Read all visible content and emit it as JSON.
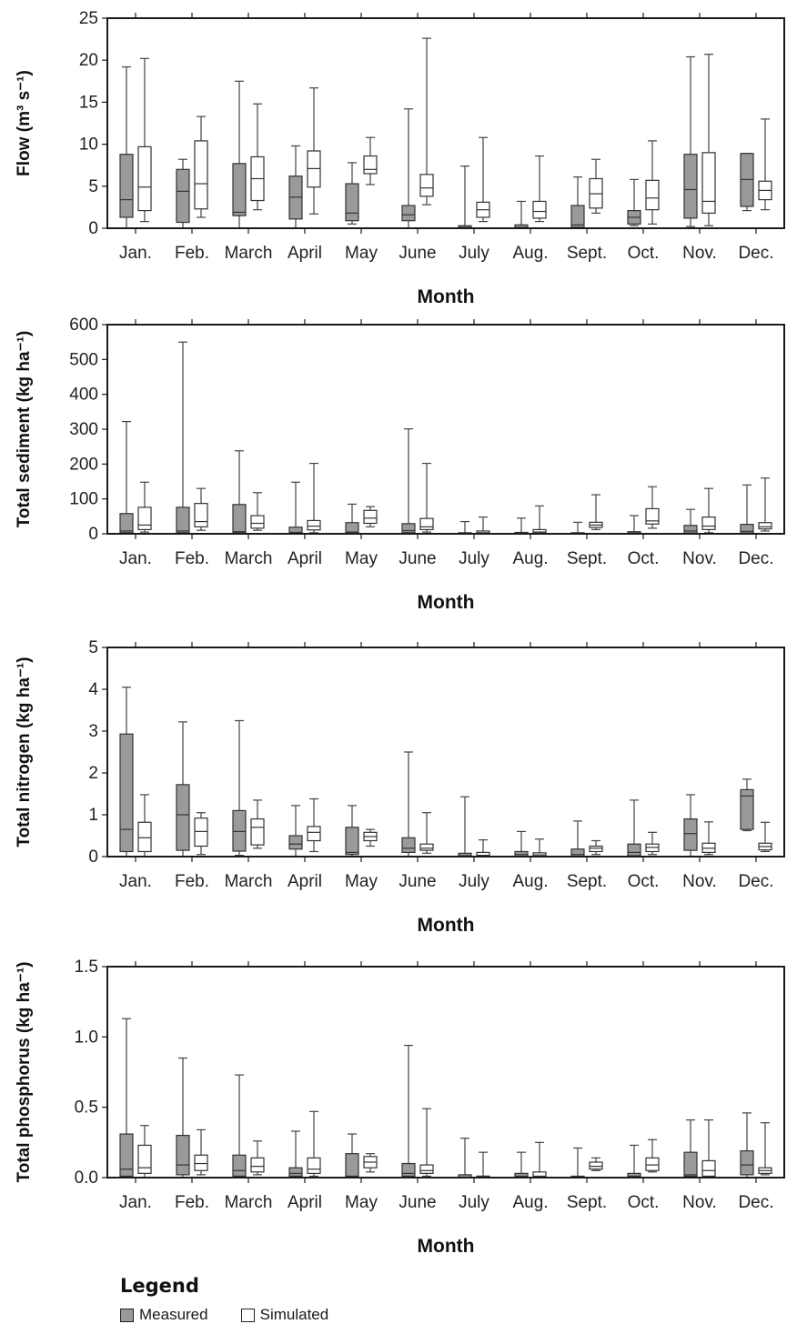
{
  "colors": {
    "measured": "#9a9a9a",
    "simulated": "#ffffff",
    "stroke": "#1a1a1a"
  },
  "legend": {
    "title": "Legend",
    "measured": "Measured",
    "simulated": "Simulated"
  },
  "chart_data": [
    {
      "type": "box",
      "xlabel": "Month",
      "ylabel": "Flow (m³ s⁻¹)",
      "ylim": [
        0,
        25
      ],
      "yticks": [
        "0",
        "5",
        "10",
        "15",
        "20",
        "25"
      ],
      "categories": [
        "Jan.",
        "Feb.",
        "March",
        "April",
        "May",
        "June",
        "July",
        "Aug.",
        "Sept.",
        "Oct.",
        "Nov.",
        "Dec."
      ],
      "series": [
        {
          "name": "Measured",
          "boxes": [
            [
              0,
              1.3,
              3.4,
              8.8,
              19.2
            ],
            [
              0,
              0.7,
              4.4,
              7.0,
              8.2
            ],
            [
              0,
              1.5,
              1.9,
              7.7,
              17.5
            ],
            [
              0,
              1.1,
              3.7,
              6.2,
              9.8
            ],
            [
              0.5,
              0.9,
              1.8,
              5.3,
              7.8
            ],
            [
              0,
              0.9,
              1.6,
              2.7,
              14.2
            ],
            [
              0,
              0,
              0.1,
              0.3,
              7.4
            ],
            [
              0,
              0,
              0.1,
              0.4,
              3.2
            ],
            [
              0,
              0.1,
              0.4,
              2.7,
              6.1
            ],
            [
              0.3,
              0.5,
              1.3,
              2.1,
              5.8
            ],
            [
              0.2,
              1.2,
              4.6,
              8.8,
              20.4
            ],
            [
              2.1,
              2.6,
              5.8,
              8.9,
              8.9
            ]
          ]
        },
        {
          "name": "Simulated",
          "boxes": [
            [
              0.8,
              2.1,
              4.9,
              9.7,
              20.2
            ],
            [
              1.3,
              2.3,
              5.3,
              10.4,
              13.3
            ],
            [
              2.2,
              3.3,
              5.9,
              8.5,
              14.8
            ],
            [
              1.7,
              4.9,
              7.1,
              9.2,
              16.7
            ],
            [
              5.2,
              6.5,
              7.0,
              8.6,
              10.8
            ],
            [
              2.8,
              3.8,
              4.8,
              6.4,
              22.6
            ],
            [
              0.8,
              1.3,
              2.2,
              3.1,
              10.8
            ],
            [
              0.8,
              1.2,
              2.0,
              3.2,
              8.6
            ],
            [
              1.8,
              2.4,
              4.1,
              5.9,
              8.2
            ],
            [
              0.5,
              2.2,
              3.6,
              5.7,
              10.4
            ],
            [
              0.3,
              1.8,
              3.2,
              9.0,
              20.7
            ],
            [
              2.2,
              3.4,
              4.5,
              5.6,
              13.0
            ]
          ]
        }
      ]
    },
    {
      "type": "box",
      "xlabel": "Month",
      "ylabel": "Total sediment (kg ha⁻¹)",
      "ylim": [
        0,
        600
      ],
      "yticks": [
        "0",
        "100",
        "200",
        "300",
        "400",
        "500",
        "600"
      ],
      "categories": [
        "Jan.",
        "Feb.",
        "March",
        "April",
        "May",
        "June",
        "July",
        "Aug.",
        "Sept.",
        "Oct.",
        "Nov.",
        "Dec."
      ],
      "series": [
        {
          "name": "Measured",
          "boxes": [
            [
              0,
              3,
              8,
              58,
              322
            ],
            [
              0,
              3,
              8,
              76,
              550
            ],
            [
              0,
              3,
              6,
              84,
              238
            ],
            [
              0,
              2,
              4,
              19,
              148
            ],
            [
              0,
              2,
              5,
              32,
              85
            ],
            [
              0,
              3,
              9,
              29,
              301
            ],
            [
              0,
              0,
              1,
              3,
              35
            ],
            [
              0,
              0,
              1,
              4,
              45
            ],
            [
              0,
              0,
              1,
              3,
              33
            ],
            [
              0,
              0,
              2,
              6,
              52
            ],
            [
              0,
              2,
              8,
              24,
              70
            ],
            [
              0,
              2,
              7,
              27,
              140
            ]
          ]
        },
        {
          "name": "Simulated",
          "boxes": [
            [
              5,
              12,
              25,
              76,
              148
            ],
            [
              10,
              20,
              35,
              87,
              130
            ],
            [
              10,
              16,
              30,
              52,
              118
            ],
            [
              3,
              11,
              22,
              38,
              202
            ],
            [
              20,
              30,
              45,
              67,
              78
            ],
            [
              5,
              12,
              20,
              44,
              202
            ],
            [
              0,
              1,
              3,
              8,
              48
            ],
            [
              0,
              2,
              5,
              12,
              80
            ],
            [
              12,
              18,
              25,
              33,
              112
            ],
            [
              16,
              28,
              37,
              72,
              135
            ],
            [
              3,
              12,
              22,
              48,
              130
            ],
            [
              8,
              14,
              20,
              32,
              160
            ]
          ]
        }
      ]
    },
    {
      "type": "box",
      "xlabel": "Month",
      "ylabel": "Total nitrogen (kg ha⁻¹)",
      "ylim": [
        0,
        5
      ],
      "yticks": [
        "0",
        "1",
        "2",
        "3",
        "4",
        "5"
      ],
      "categories": [
        "Jan.",
        "Feb.",
        "March",
        "April",
        "May",
        "June",
        "July",
        "Aug.",
        "Sept.",
        "Oct.",
        "Nov.",
        "Dec."
      ],
      "series": [
        {
          "name": "Measured",
          "boxes": [
            [
              0,
              0.12,
              0.65,
              2.93,
              4.05
            ],
            [
              0,
              0.15,
              1.0,
              1.72,
              3.22
            ],
            [
              0.03,
              0.13,
              0.6,
              1.1,
              3.25
            ],
            [
              0.01,
              0.18,
              0.3,
              0.5,
              1.22
            ],
            [
              0,
              0.05,
              0.1,
              0.7,
              1.22
            ],
            [
              0.01,
              0.1,
              0.2,
              0.45,
              2.5
            ],
            [
              0,
              0,
              0.02,
              0.08,
              1.43
            ],
            [
              0,
              0,
              0.05,
              0.12,
              0.6
            ],
            [
              0,
              0.01,
              0.05,
              0.18,
              0.85
            ],
            [
              0,
              0.02,
              0.1,
              0.3,
              1.35
            ],
            [
              0.01,
              0.15,
              0.55,
              0.9,
              1.48
            ],
            [
              0.62,
              0.65,
              1.45,
              1.6,
              1.85
            ]
          ]
        },
        {
          "name": "Simulated",
          "boxes": [
            [
              0,
              0.12,
              0.45,
              0.82,
              1.48
            ],
            [
              0.05,
              0.25,
              0.6,
              0.92,
              1.05
            ],
            [
              0.2,
              0.28,
              0.7,
              0.9,
              1.35
            ],
            [
              0.12,
              0.38,
              0.58,
              0.72,
              1.38
            ],
            [
              0.25,
              0.38,
              0.48,
              0.58,
              0.65
            ],
            [
              0.08,
              0.15,
              0.2,
              0.3,
              1.05
            ],
            [
              0,
              0.01,
              0.03,
              0.1,
              0.4
            ],
            [
              0,
              0.01,
              0.04,
              0.09,
              0.42
            ],
            [
              0.05,
              0.12,
              0.2,
              0.25,
              0.38
            ],
            [
              0.05,
              0.12,
              0.22,
              0.3,
              0.58
            ],
            [
              0.05,
              0.1,
              0.2,
              0.32,
              0.83
            ],
            [
              0.12,
              0.16,
              0.24,
              0.32,
              0.82
            ]
          ]
        }
      ]
    },
    {
      "type": "box",
      "xlabel": "Month",
      "ylabel": "Total phosphorus (kg ha⁻¹)",
      "ylim": [
        0,
        1.5
      ],
      "yticks": [
        "0.0",
        "0.5",
        "1.0",
        "1.5"
      ],
      "categories": [
        "Jan.",
        "Feb.",
        "March",
        "April",
        "May",
        "June",
        "July",
        "Aug.",
        "Sept.",
        "Oct.",
        "Nov.",
        "Dec."
      ],
      "series": [
        {
          "name": "Measured",
          "boxes": [
            [
              0,
              0.01,
              0.06,
              0.31,
              1.13
            ],
            [
              0,
              0.02,
              0.09,
              0.3,
              0.85
            ],
            [
              0,
              0.01,
              0.05,
              0.16,
              0.73
            ],
            [
              0,
              0.01,
              0.03,
              0.07,
              0.33
            ],
            [
              0,
              0,
              0.01,
              0.17,
              0.31
            ],
            [
              0,
              0.01,
              0.03,
              0.1,
              0.94
            ],
            [
              0,
              0,
              0,
              0.02,
              0.28
            ],
            [
              0,
              0,
              0.01,
              0.03,
              0.18
            ],
            [
              0,
              0,
              0,
              0.01,
              0.21
            ],
            [
              0,
              0,
              0.01,
              0.03,
              0.23
            ],
            [
              0,
              0.01,
              0.02,
              0.18,
              0.41
            ],
            [
              0,
              0.02,
              0.09,
              0.19,
              0.46
            ]
          ]
        },
        {
          "name": "Simulated",
          "boxes": [
            [
              0,
              0.03,
              0.07,
              0.23,
              0.37
            ],
            [
              0.02,
              0.05,
              0.1,
              0.16,
              0.34
            ],
            [
              0.02,
              0.04,
              0.08,
              0.14,
              0.26
            ],
            [
              0.01,
              0.03,
              0.06,
              0.14,
              0.47
            ],
            [
              0.04,
              0.07,
              0.11,
              0.15,
              0.17
            ],
            [
              0.01,
              0.03,
              0.05,
              0.09,
              0.49
            ],
            [
              0,
              0,
              0.01,
              0.01,
              0.18
            ],
            [
              0,
              0,
              0.01,
              0.04,
              0.25
            ],
            [
              0.05,
              0.06,
              0.08,
              0.11,
              0.14
            ],
            [
              0.04,
              0.05,
              0.09,
              0.14,
              0.27
            ],
            [
              0,
              0.01,
              0.05,
              0.12,
              0.41
            ],
            [
              0.02,
              0.03,
              0.05,
              0.07,
              0.39
            ]
          ]
        }
      ]
    }
  ]
}
